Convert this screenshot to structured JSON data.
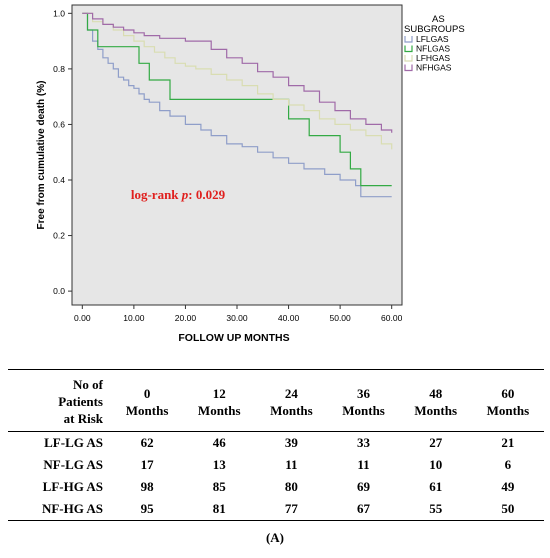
{
  "chart_data": {
    "type": "line",
    "title": "",
    "xlabel": "FOLLOW UP MONTHS",
    "ylabel": "Free from cumulative death (%)",
    "xlim": [
      -2,
      62
    ],
    "ylim": [
      -0.05,
      1.03
    ],
    "x_ticks": [
      0,
      10,
      20,
      30,
      40,
      50,
      60
    ],
    "x_tick_labels": [
      "0.00",
      "10.00",
      "20.00",
      "30.00",
      "40.00",
      "50.00",
      "60.00"
    ],
    "y_ticks": [
      0.0,
      0.2,
      0.4,
      0.6,
      0.8,
      1.0
    ],
    "y_tick_labels": [
      "0.0",
      "0.2",
      "0.4",
      "0.6",
      "0.8",
      "1.0"
    ],
    "grid": false,
    "legend_title": "AS SUBGROUPS",
    "legend_position": "right",
    "annotation": "log-rank p: 0.029",
    "series": [
      {
        "name": "LFLGAS",
        "color": "#8f9ec9",
        "x": [
          0,
          1,
          2,
          3,
          4,
          5,
          6,
          7,
          8,
          9,
          10,
          11,
          12,
          13,
          15,
          17,
          20,
          23,
          25,
          28,
          31,
          34,
          37,
          40,
          43,
          47,
          50,
          53,
          54,
          60
        ],
        "y": [
          1.0,
          0.94,
          0.9,
          0.87,
          0.84,
          0.82,
          0.8,
          0.77,
          0.76,
          0.74,
          0.73,
          0.71,
          0.69,
          0.68,
          0.65,
          0.63,
          0.6,
          0.58,
          0.56,
          0.53,
          0.52,
          0.5,
          0.48,
          0.46,
          0.44,
          0.42,
          0.4,
          0.38,
          0.34,
          0.34
        ]
      },
      {
        "name": "NFLGAS",
        "color": "#33aa44",
        "x": [
          0,
          1,
          3,
          5,
          11,
          13,
          17,
          40,
          44,
          50,
          52,
          54,
          60
        ],
        "y": [
          1.0,
          0.94,
          0.88,
          0.88,
          0.82,
          0.76,
          0.69,
          0.62,
          0.56,
          0.5,
          0.44,
          0.38,
          0.38
        ]
      },
      {
        "name": "LFHGAS",
        "color": "#d9ddb2",
        "x": [
          0,
          2,
          4,
          6,
          8,
          10,
          12,
          14,
          16,
          18,
          20,
          22,
          25,
          28,
          31,
          34,
          37,
          40,
          43,
          46,
          49,
          52,
          55,
          58,
          60
        ],
        "y": [
          1.0,
          0.97,
          0.96,
          0.94,
          0.92,
          0.9,
          0.88,
          0.86,
          0.84,
          0.82,
          0.81,
          0.8,
          0.78,
          0.76,
          0.74,
          0.71,
          0.69,
          0.67,
          0.65,
          0.62,
          0.6,
          0.58,
          0.56,
          0.53,
          0.51
        ]
      },
      {
        "name": "NFHGAS",
        "color": "#a06aa8",
        "x": [
          0,
          2,
          4,
          6,
          8,
          10,
          12,
          15,
          20,
          25,
          28,
          31,
          34,
          37,
          40,
          43,
          46,
          49,
          52,
          55,
          58,
          60
        ],
        "y": [
          1.0,
          0.98,
          0.96,
          0.95,
          0.94,
          0.93,
          0.92,
          0.91,
          0.9,
          0.87,
          0.84,
          0.82,
          0.79,
          0.77,
          0.74,
          0.72,
          0.68,
          0.65,
          0.62,
          0.6,
          0.58,
          0.57
        ]
      }
    ]
  },
  "risk_table": {
    "row_header_title": [
      "No of",
      "Patients",
      "at Risk"
    ],
    "columns": [
      {
        "num": "0",
        "unit": "Months"
      },
      {
        "num": "12",
        "unit": "Months"
      },
      {
        "num": "24",
        "unit": "Months"
      },
      {
        "num": "36",
        "unit": "Months"
      },
      {
        "num": "48",
        "unit": "Months"
      },
      {
        "num": "60",
        "unit": "Months"
      }
    ],
    "rows": [
      {
        "label": "LF-LG AS",
        "values": [
          "62",
          "46",
          "39",
          "33",
          "27",
          "21"
        ]
      },
      {
        "label": "NF-LG AS",
        "values": [
          "17",
          "13",
          "11",
          "11",
          "10",
          "6"
        ]
      },
      {
        "label": "LF-HG AS",
        "values": [
          "98",
          "85",
          "80",
          "69",
          "61",
          "49"
        ]
      },
      {
        "label": "NF-HG AS",
        "values": [
          "95",
          "81",
          "77",
          "67",
          "55",
          "50"
        ]
      }
    ]
  },
  "caption": "(A)",
  "colors": {
    "plot_background": "#e6e6e6",
    "annotation": "#e0201e"
  }
}
